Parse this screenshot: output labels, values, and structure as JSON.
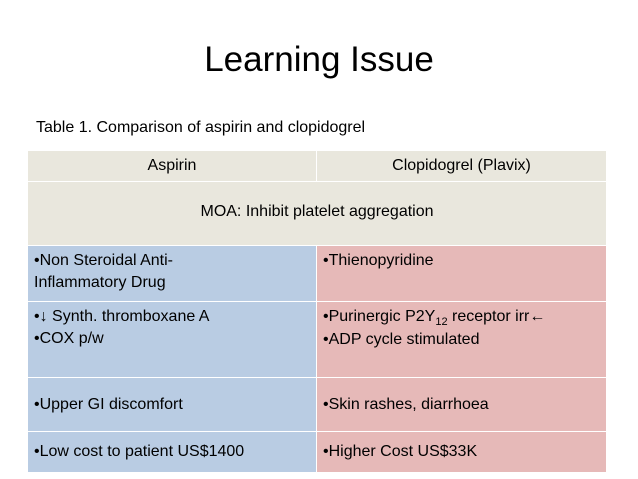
{
  "slide": {
    "title": "Learning Issue",
    "caption": "Table 1. Comparison of aspirin and clopidogrel"
  },
  "table": {
    "headers": [
      "Aspirin",
      "Clopidogrel (Plavix)"
    ],
    "moa": "MOA: Inhibit platelet aggregation",
    "rows": [
      {
        "aspirin": [
          "•Non Steroidal Anti-",
          "Inflammatory Drug"
        ],
        "clopidogrel": [
          "•Thienopyridine"
        ]
      },
      {
        "aspirin": [
          "•↓ Synth. thromboxane A",
          "•COX p/w"
        ],
        "clopidogrel_a_pre": "•Purinergic P2Y",
        "clopidogrel_a_sub": "12",
        "clopidogrel_a_post": " receptor irr←",
        "clopidogrel_b": "•ADP cycle stimulated"
      },
      {
        "aspirin": [
          "•Upper GI discomfort"
        ],
        "clopidogrel": [
          "•Skin rashes, diarrhoea"
        ]
      },
      {
        "aspirin": [
          "•Low cost to patient US$1400"
        ],
        "clopidogrel": [
          "•Higher Cost  US$33K"
        ]
      }
    ]
  },
  "colors": {
    "header_bg": "#e9e7dd",
    "aspirin_bg": "#b9cce3",
    "clopidogrel_bg": "#e6b9b8"
  }
}
